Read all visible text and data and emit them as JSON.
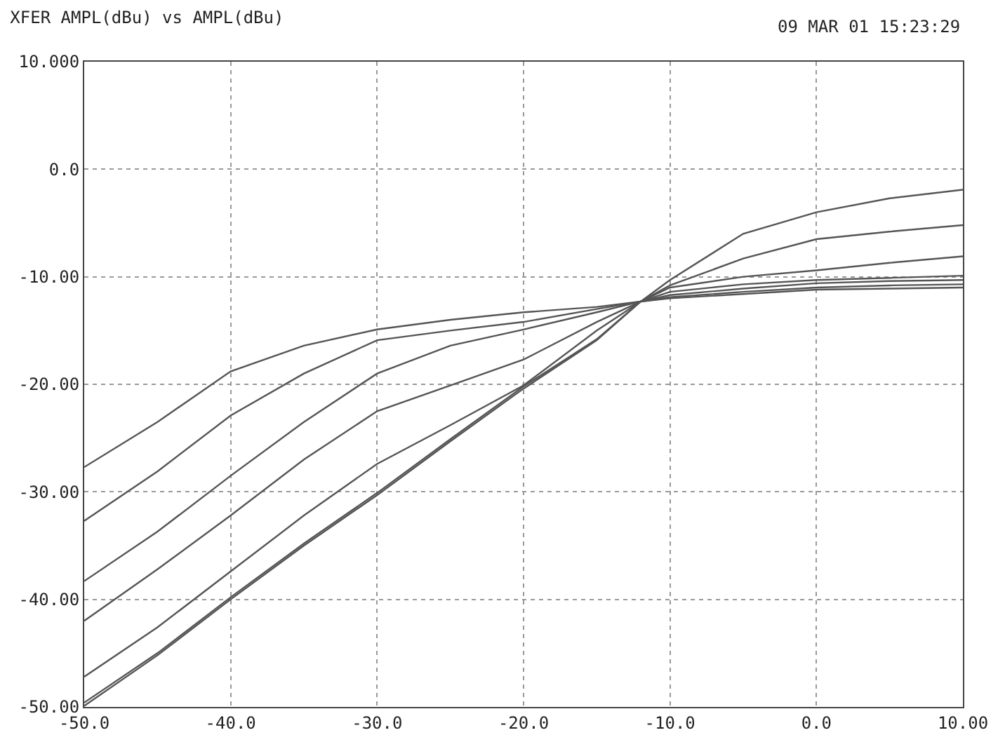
{
  "chart_data": {
    "type": "line",
    "title": "XFER AMPL(dBu) vs AMPL(dBu)",
    "annotations": [
      "09 MAR 01 15:23:29"
    ],
    "grid": true,
    "line_style": "solid",
    "marker": "none",
    "xlim": [
      -50,
      10
    ],
    "ylim": [
      -50,
      10
    ],
    "xticks": [
      {
        "value": -50,
        "label": "-50.0"
      },
      {
        "value": -40,
        "label": "-40.0"
      },
      {
        "value": -30,
        "label": "-30.0"
      },
      {
        "value": -20,
        "label": "-20.0"
      },
      {
        "value": -10,
        "label": "-10.0"
      },
      {
        "value": 0,
        "label": "0.0"
      },
      {
        "value": 10,
        "label": "10.00"
      }
    ],
    "yticks": [
      {
        "value": 10,
        "label": "10.000"
      },
      {
        "value": 0,
        "label": "0.0"
      },
      {
        "value": -10,
        "label": "-10.00"
      },
      {
        "value": -20,
        "label": "-20.00"
      },
      {
        "value": -30,
        "label": "-30.00"
      },
      {
        "value": -40,
        "label": "-40.00"
      },
      {
        "value": -50,
        "label": "-50.00"
      }
    ],
    "x": [
      -50,
      -45,
      -40,
      -35,
      -30,
      -25,
      -20,
      -15,
      -12,
      -10,
      -5,
      0,
      5,
      10
    ],
    "series": [
      {
        "color": "#555555",
        "values": [
          -27.7,
          -23.5,
          -18.8,
          -16.4,
          -14.9,
          -14,
          -13.3,
          -12.8,
          -12.3,
          -12,
          -11.6,
          -11.2,
          -11.1,
          -11
        ]
      },
      {
        "color": "#555555",
        "values": [
          -32.7,
          -28.1,
          -22.9,
          -19,
          -15.9,
          -15,
          -14.2,
          -13,
          -12.3,
          -11.9,
          -11.4,
          -11,
          -10.8,
          -10.7
        ]
      },
      {
        "color": "#555555",
        "values": [
          -38.3,
          -33.7,
          -28.5,
          -23.5,
          -19,
          -16.4,
          -14.9,
          -13.3,
          -12.3,
          -11.7,
          -11.1,
          -10.6,
          -10.4,
          -10.3
        ]
      },
      {
        "color": "#555555",
        "values": [
          -42,
          -37.2,
          -32.2,
          -27,
          -22.5,
          -20.1,
          -17.7,
          -14.2,
          -12.3,
          -11.4,
          -10.7,
          -10.3,
          -10.1,
          -9.9
        ]
      },
      {
        "color": "#555555",
        "values": [
          -47.2,
          -42.6,
          -37.4,
          -32.2,
          -27.4,
          -23.8,
          -20.1,
          -15,
          -12.3,
          -11,
          -10,
          -9.4,
          -8.7,
          -8.1
        ]
      },
      {
        "color": "#555555",
        "values": [
          -49.6,
          -45,
          -39.8,
          -34.8,
          -30.1,
          -25.1,
          -20.2,
          -15.8,
          -12.3,
          -10.3,
          -6,
          -4,
          -2.7,
          -1.9
        ]
      },
      {
        "color": "#555555",
        "values": [
          -49.9,
          -45.2,
          -40,
          -35,
          -30.3,
          -25.3,
          -20.4,
          -15.9,
          -12.3,
          -10.8,
          -8.3,
          -6.5,
          -5.8,
          -5.2
        ]
      }
    ]
  }
}
